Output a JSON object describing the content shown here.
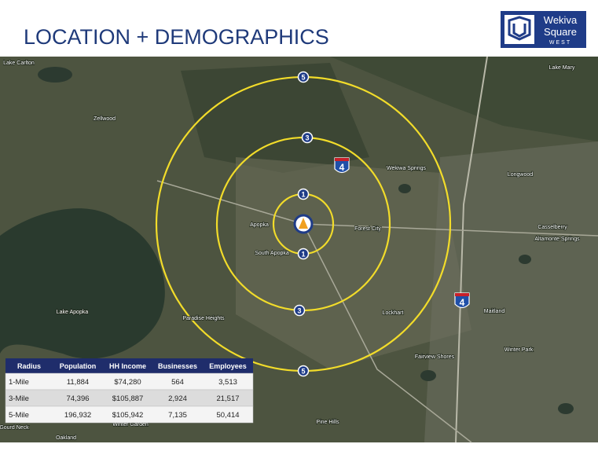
{
  "header": {
    "title": "LOCATION + DEMOGRAPHICS",
    "logo": {
      "line1": "Wekiva",
      "line2": "Square",
      "line3": "WEST"
    }
  },
  "map": {
    "rings": [
      "1",
      "3",
      "5"
    ],
    "interstate": "4",
    "places": [
      "Zellwood",
      "Apopka",
      "South Apopka",
      "Lake Apopka",
      "Lake Mary",
      "Wekiwa Springs",
      "Longwood",
      "Forest City",
      "Casselberry",
      "Altamonte Springs",
      "Maitland",
      "Lockhart",
      "Fairview Shores",
      "Winter Park",
      "Pine Hills",
      "Winter Garden",
      "Oakland",
      "Paradise Heights",
      "Lake Carlton",
      "Gourd Neck"
    ]
  },
  "table": {
    "columns": [
      "Radius",
      "Population",
      "HH Income",
      "Businesses",
      "Employees"
    ],
    "rows": [
      [
        "1-Mile",
        "11,884",
        "$74,280",
        "564",
        "3,513"
      ],
      [
        "3-Mile",
        "74,396",
        "$105,887",
        "2,924",
        "21,517"
      ],
      [
        "5-Mile",
        "196,932",
        "$105,942",
        "7,135",
        "50,414"
      ]
    ]
  }
}
